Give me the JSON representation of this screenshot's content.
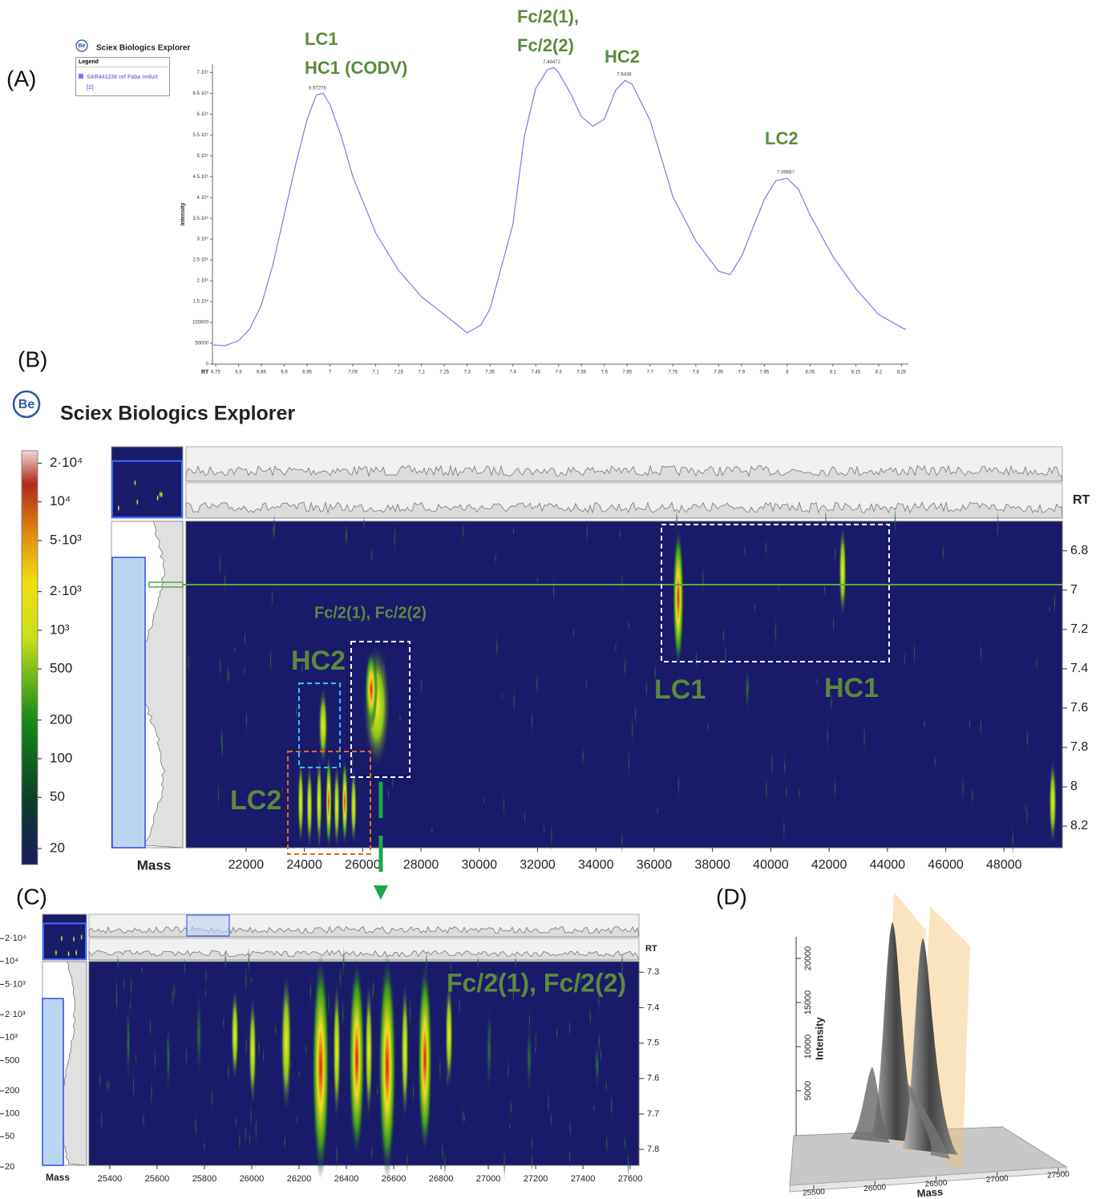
{
  "chart_data": [
    {
      "type": "line",
      "panel_label": "(A)",
      "logo_text": "Be",
      "app_title": "Sciex Biologics Explorer",
      "legend_title": "Legend",
      "x_label": "RT",
      "y_label": "Intensity",
      "xlim": [
        6.743,
        8.265
      ],
      "ylim": [
        0,
        720000
      ],
      "xticks": [
        6.75,
        6.8,
        6.85,
        6.9,
        6.95,
        7,
        7.05,
        7.1,
        7.15,
        7.2,
        7.25,
        7.3,
        7.35,
        7.4,
        7.45,
        7.5,
        7.55,
        7.6,
        7.65,
        7.7,
        7.75,
        7.8,
        7.85,
        7.9,
        7.95,
        8,
        8.05,
        8.1,
        8.15,
        8.2,
        8.25
      ],
      "yticks": [
        0,
        50000,
        100000,
        {
          "value": 150000,
          "label": "1.5·10⁵"
        },
        {
          "value": 200000,
          "label": "2·10⁵"
        },
        {
          "value": 250000,
          "label": "2.5·10⁵"
        },
        {
          "value": 300000,
          "label": "3·10⁵"
        },
        {
          "value": 350000,
          "label": "3.5·10⁵"
        },
        {
          "value": 400000,
          "label": "4·10⁵"
        },
        {
          "value": 450000,
          "label": "4.5·10⁵"
        },
        {
          "value": 500000,
          "label": "5·10⁵"
        },
        {
          "value": 550000,
          "label": "5.5·10⁵"
        },
        {
          "value": 600000,
          "label": "6·10⁵"
        },
        {
          "value": 650000,
          "label": "6.5·10⁵"
        },
        {
          "value": 700000,
          "label": "7·10⁵"
        }
      ],
      "x": [
        6.745,
        6.77,
        6.8,
        6.825,
        6.85,
        6.875,
        6.9,
        6.925,
        6.95,
        6.97,
        6.985,
        7,
        7.025,
        7.05,
        7.1,
        7.15,
        7.2,
        7.25,
        7.3,
        7.33,
        7.35,
        7.4,
        7.425,
        7.45,
        7.475,
        7.49,
        7.5,
        7.525,
        7.55,
        7.575,
        7.6,
        7.625,
        7.645,
        7.66,
        7.7,
        7.75,
        7.8,
        7.85,
        7.875,
        7.9,
        7.95,
        7.975,
        8,
        8.025,
        8.05,
        8.1,
        8.15,
        8.2,
        8.25,
        8.26
      ],
      "series": [
        {
          "name": "SAR441236 ref Faba reduit [2]",
          "color": "#7b7bee",
          "values": [
            46000,
            44000,
            56000,
            85000,
            142000,
            238000,
            358000,
            479000,
            588000,
            646000,
            650000,
            623000,
            546000,
            450000,
            315000,
            225000,
            162000,
            119000,
            75000,
            94000,
            133000,
            335000,
            546000,
            662000,
            706000,
            712000,
            700000,
            652000,
            594000,
            571000,
            588000,
            658000,
            681000,
            673000,
            585000,
            402000,
            296000,
            223000,
            215000,
            258000,
            396000,
            440000,
            446000,
            419000,
            358000,
            258000,
            181000,
            119000,
            88000,
            83000
          ]
        }
      ],
      "peak_labels": [
        {
          "value": 6.97276,
          "label": "6.97276"
        },
        {
          "value": 7.48472,
          "label": "7.48472"
        },
        {
          "value": 7.6436,
          "label": "7.6436"
        },
        {
          "value": 7.99667,
          "label": "7.99667"
        }
      ],
      "annotations": [
        "LC1",
        "HC1 (CODV)",
        "Fc/2(1),",
        "Fc/2(2)",
        "HC2",
        "LC2"
      ]
    },
    {
      "type": "heatmap",
      "panel_label": "(B)",
      "logo_text": "Be",
      "app_title": "Sciex Biologics Explorer",
      "x_label": "Mass",
      "y_label": "RT",
      "xlim": [
        19940,
        50000
      ],
      "ylim": [
        6.65,
        8.31
      ],
      "xticks": [
        22000,
        24000,
        26000,
        28000,
        30000,
        32000,
        34000,
        36000,
        38000,
        40000,
        42000,
        44000,
        46000,
        48000
      ],
      "yticks": [
        6.8,
        7,
        7.2,
        7.4,
        7.6,
        7.8,
        8,
        8.2
      ],
      "colorbar_log": true,
      "colorbar_lim": [
        15,
        25000
      ],
      "colorbar_ticks": [
        {
          "value": 20000,
          "label": "2·10⁴"
        },
        {
          "value": 10000,
          "label": "10⁴"
        },
        {
          "value": 5000,
          "label": "5·10³"
        },
        {
          "value": 2000,
          "label": "2·10³"
        },
        {
          "value": 1000,
          "label": "10³"
        },
        500,
        200,
        100,
        50,
        20
      ],
      "annotations": [
        "Fc/2(1), Fc/2(2)",
        "HC2",
        "LC1",
        "HC1",
        "LC2"
      ]
    },
    {
      "type": "heatmap",
      "panel_label": "(C)",
      "x_label": "Mass",
      "y_label": "RT",
      "xlim": [
        25312,
        27637
      ],
      "ylim": [
        7.27,
        7.845
      ],
      "xticks": [
        25400,
        25600,
        25800,
        26000,
        26200,
        26400,
        26600,
        26800,
        27000,
        27200,
        27400,
        27600
      ],
      "yticks": [
        7.3,
        7.4,
        7.5,
        7.6,
        7.7,
        7.8
      ],
      "colorbar_log": true,
      "colorbar_lim": [
        15,
        25000
      ],
      "colorbar_ticks": [
        {
          "value": 20000,
          "label": "2·10⁴"
        },
        {
          "value": 10000,
          "label": "10⁴"
        },
        {
          "value": 5000,
          "label": "5·10³"
        },
        {
          "value": 2000,
          "label": "2·10³"
        },
        {
          "value": 1000,
          "label": "10³"
        },
        500,
        200,
        100,
        50,
        20
      ],
      "annotations": [
        "Fc/2(1), Fc/2(2)"
      ]
    },
    {
      "type": "surface3d",
      "panel_label": "(D)",
      "x_label": "Mass",
      "z_label": "Intensity",
      "xlim": [
        25500,
        27500
      ],
      "zlim": [
        0,
        20000
      ],
      "xticks": [
        25500,
        26000,
        26500,
        27000,
        27500
      ],
      "zticks": [
        5000,
        10000,
        15000,
        20000
      ]
    }
  ]
}
